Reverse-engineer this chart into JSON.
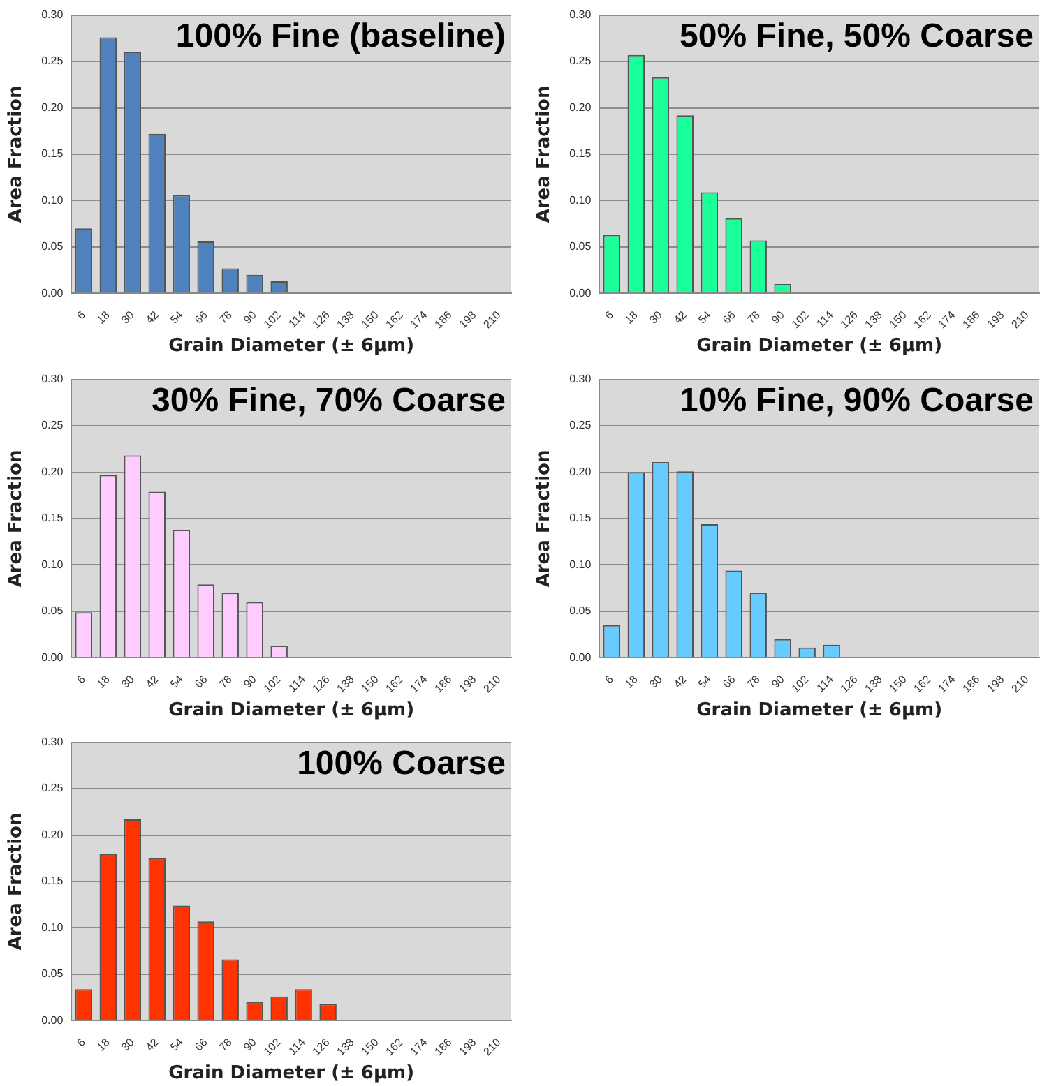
{
  "chart_data": [
    {
      "type": "bar",
      "title": "100% Fine (baseline)",
      "xlabel": "Grain Diameter (± 6µm)",
      "ylabel": "Area Fraction",
      "categories": [
        "6",
        "18",
        "30",
        "42",
        "54",
        "66",
        "78",
        "90",
        "102",
        "114",
        "126",
        "138",
        "150",
        "162",
        "174",
        "186",
        "198",
        "210"
      ],
      "color": "#4f81bd",
      "values": [
        0.07,
        0.276,
        0.26,
        0.172,
        0.106,
        0.056,
        0.027,
        0.02,
        0.013,
        0,
        0,
        0,
        0,
        0,
        0,
        0,
        0,
        0
      ],
      "ylim": [
        0,
        0.3
      ],
      "yticks": [
        {
          "value": 0,
          "label": "0.00"
        },
        {
          "value": 0.05,
          "label": "0.05"
        },
        {
          "value": 0.1,
          "label": "0.10"
        },
        {
          "value": 0.15,
          "label": "0.15"
        },
        {
          "value": 0.2,
          "label": "0.20"
        },
        {
          "value": 0.25,
          "label": "0.25"
        },
        {
          "value": 0.3,
          "label": "0.30"
        }
      ],
      "grid": "y",
      "legend": false
    },
    {
      "type": "bar",
      "title": "50% Fine, 50% Coarse",
      "xlabel": "Grain Diameter (± 6µm)",
      "ylabel": "Area Fraction",
      "categories": [
        "6",
        "18",
        "30",
        "42",
        "54",
        "66",
        "78",
        "90",
        "102",
        "114",
        "126",
        "138",
        "150",
        "162",
        "174",
        "186",
        "198",
        "210"
      ],
      "color": "#1aff99",
      "values": [
        0.063,
        0.257,
        0.233,
        0.192,
        0.109,
        0.081,
        0.057,
        0.01,
        0,
        0,
        0,
        0,
        0,
        0,
        0,
        0,
        0,
        0
      ],
      "ylim": [
        0,
        0.3
      ],
      "yticks": [
        {
          "value": 0,
          "label": "0.00"
        },
        {
          "value": 0.05,
          "label": "0.05"
        },
        {
          "value": 0.1,
          "label": "0.10"
        },
        {
          "value": 0.15,
          "label": "0.15"
        },
        {
          "value": 0.2,
          "label": "0.20"
        },
        {
          "value": 0.25,
          "label": "0.25"
        },
        {
          "value": 0.3,
          "label": "0.30"
        }
      ],
      "grid": "y",
      "legend": false
    },
    {
      "type": "bar",
      "title": "30% Fine, 70% Coarse",
      "xlabel": "Grain Diameter (± 6µm)",
      "ylabel": "Area Fraction",
      "categories": [
        "6",
        "18",
        "30",
        "42",
        "54",
        "66",
        "78",
        "90",
        "102",
        "114",
        "126",
        "138",
        "150",
        "162",
        "174",
        "186",
        "198",
        "210"
      ],
      "color": "#ffccff",
      "values": [
        0.049,
        0.197,
        0.218,
        0.179,
        0.138,
        0.079,
        0.07,
        0.06,
        0.013,
        0,
        0,
        0,
        0,
        0,
        0,
        0,
        0,
        0
      ],
      "ylim": [
        0,
        0.3
      ],
      "yticks": [
        {
          "value": 0,
          "label": "0.00"
        },
        {
          "value": 0.05,
          "label": "0.05"
        },
        {
          "value": 0.1,
          "label": "0.10"
        },
        {
          "value": 0.15,
          "label": "0.15"
        },
        {
          "value": 0.2,
          "label": "0.20"
        },
        {
          "value": 0.25,
          "label": "0.25"
        },
        {
          "value": 0.3,
          "label": "0.30"
        }
      ],
      "grid": "y",
      "legend": false
    },
    {
      "type": "bar",
      "title": "10% Fine, 90% Coarse",
      "xlabel": "Grain Diameter (± 6µm)",
      "ylabel": "Area Fraction",
      "categories": [
        "6",
        "18",
        "30",
        "42",
        "54",
        "66",
        "78",
        "90",
        "102",
        "114",
        "126",
        "138",
        "150",
        "162",
        "174",
        "186",
        "198",
        "210"
      ],
      "color": "#66ccff",
      "values": [
        0.035,
        0.2,
        0.211,
        0.201,
        0.144,
        0.094,
        0.07,
        0.02,
        0.011,
        0.014,
        0,
        0,
        0,
        0,
        0,
        0,
        0,
        0
      ],
      "ylim": [
        0,
        0.3
      ],
      "yticks": [
        {
          "value": 0,
          "label": "0.00"
        },
        {
          "value": 0.05,
          "label": "0.05"
        },
        {
          "value": 0.1,
          "label": "0.10"
        },
        {
          "value": 0.15,
          "label": "0.15"
        },
        {
          "value": 0.2,
          "label": "0.20"
        },
        {
          "value": 0.25,
          "label": "0.25"
        },
        {
          "value": 0.3,
          "label": "0.30"
        }
      ],
      "grid": "y",
      "legend": false
    },
    {
      "type": "bar",
      "title": "100% Coarse",
      "xlabel": "Grain Diameter (± 6µm)",
      "ylabel": "Area Fraction",
      "categories": [
        "6",
        "18",
        "30",
        "42",
        "54",
        "66",
        "78",
        "90",
        "102",
        "114",
        "126",
        "138",
        "150",
        "162",
        "174",
        "186",
        "198",
        "210"
      ],
      "color": "#ff3300",
      "values": [
        0.034,
        0.18,
        0.217,
        0.175,
        0.124,
        0.107,
        0.066,
        0.02,
        0.026,
        0.034,
        0.018,
        0,
        0,
        0,
        0,
        0,
        0,
        0
      ],
      "ylim": [
        0,
        0.3
      ],
      "yticks": [
        {
          "value": 0,
          "label": "0.00"
        },
        {
          "value": 0.05,
          "label": "0.05"
        },
        {
          "value": 0.1,
          "label": "0.10"
        },
        {
          "value": 0.15,
          "label": "0.15"
        },
        {
          "value": 0.2,
          "label": "0.20"
        },
        {
          "value": 0.25,
          "label": "0.25"
        },
        {
          "value": 0.3,
          "label": "0.30"
        }
      ],
      "grid": "y",
      "legend": false
    }
  ]
}
